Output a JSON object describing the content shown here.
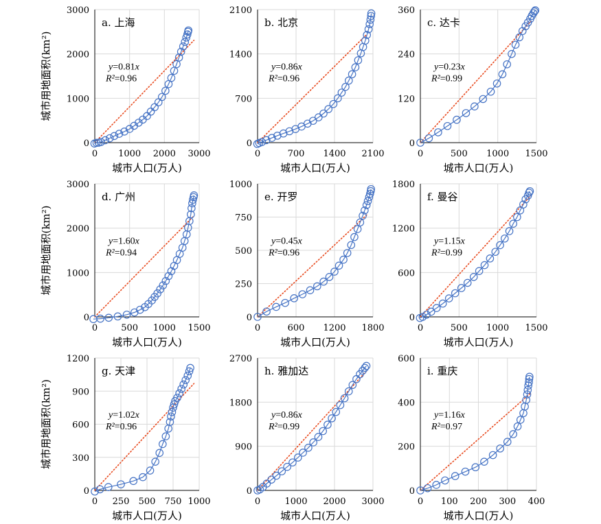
{
  "chart_data": [
    {
      "type": "scatter",
      "title": "a. 上海",
      "xlabel": "城市人口(万人)",
      "ylabel": "城市用地面积(km²)",
      "xlim": [
        0,
        3000
      ],
      "ylim": [
        0,
        3000
      ],
      "xticks": [
        0,
        1000,
        2000,
        3000
      ],
      "yticks": [
        0,
        1000,
        2000,
        3000
      ],
      "xtick_labels": [
        "0",
        "1000",
        "2000",
        "3000"
      ],
      "ytick_labels": [
        "0",
        "1000",
        "2000",
        "3000"
      ],
      "fit": {
        "slope": 0.81,
        "equation_y": "y",
        "equation_rest": "=0.81",
        "equation_x": "x",
        "r2_label": "R²",
        "r2_value": "=0.96"
      },
      "points": [
        [
          -10,
          -20
        ],
        [
          50,
          -5
        ],
        [
          110,
          0
        ],
        [
          180,
          15
        ],
        [
          300,
          55
        ],
        [
          430,
          100
        ],
        [
          560,
          150
        ],
        [
          700,
          200
        ],
        [
          850,
          250
        ],
        [
          1000,
          310
        ],
        [
          1130,
          380
        ],
        [
          1260,
          450
        ],
        [
          1380,
          520
        ],
        [
          1500,
          600
        ],
        [
          1610,
          700
        ],
        [
          1720,
          800
        ],
        [
          1830,
          910
        ],
        [
          1930,
          1030
        ],
        [
          2030,
          1170
        ],
        [
          2120,
          1320
        ],
        [
          2200,
          1460
        ],
        [
          2280,
          1620
        ],
        [
          2350,
          1770
        ],
        [
          2420,
          1920
        ],
        [
          2480,
          2050
        ],
        [
          2540,
          2170
        ],
        [
          2590,
          2270
        ],
        [
          2630,
          2370
        ],
        [
          2660,
          2440
        ],
        [
          2680,
          2500
        ],
        [
          2690,
          2530
        ]
      ]
    },
    {
      "type": "scatter",
      "title": "b. 北京",
      "xlabel": "城市人口(万人)",
      "ylabel": "",
      "xlim": [
        0,
        2100
      ],
      "ylim": [
        0,
        2100
      ],
      "xticks": [
        0,
        700,
        1400,
        2100
      ],
      "yticks": [
        0,
        700,
        1400,
        2100
      ],
      "xtick_labels": [
        "0",
        "700",
        "1400",
        "2100"
      ],
      "ytick_labels": [
        "0",
        "700",
        "1400",
        "2100"
      ],
      "fit": {
        "slope": 0.86,
        "equation_y": "y",
        "equation_rest": "=0.86",
        "equation_x": "x",
        "r2_label": "R²",
        "r2_value": "=0.96"
      },
      "points": [
        [
          -5,
          -20
        ],
        [
          30,
          -5
        ],
        [
          80,
          10
        ],
        [
          160,
          40
        ],
        [
          260,
          75
        ],
        [
          360,
          110
        ],
        [
          470,
          145
        ],
        [
          580,
          180
        ],
        [
          690,
          215
        ],
        [
          800,
          255
        ],
        [
          910,
          300
        ],
        [
          1010,
          345
        ],
        [
          1110,
          400
        ],
        [
          1200,
          460
        ],
        [
          1290,
          530
        ],
        [
          1380,
          610
        ],
        [
          1460,
          700
        ],
        [
          1530,
          790
        ],
        [
          1600,
          880
        ],
        [
          1660,
          980
        ],
        [
          1720,
          1080
        ],
        [
          1780,
          1190
        ],
        [
          1830,
          1300
        ],
        [
          1880,
          1410
        ],
        [
          1920,
          1510
        ],
        [
          1960,
          1610
        ],
        [
          1990,
          1700
        ],
        [
          2020,
          1790
        ],
        [
          2040,
          1870
        ],
        [
          2055,
          1940
        ],
        [
          2065,
          2000
        ],
        [
          2070,
          2040
        ]
      ]
    },
    {
      "type": "scatter",
      "title": "c. 达卡",
      "xlabel": "城市人口(万人)",
      "ylabel": "",
      "xlim": [
        0,
        1500
      ],
      "ylim": [
        0,
        360
      ],
      "xticks": [
        0,
        500,
        1000,
        1500
      ],
      "yticks": [
        0,
        120,
        240,
        360
      ],
      "xtick_labels": [
        "0",
        "500",
        "1000",
        "1500"
      ],
      "ytick_labels": [
        "0",
        "120",
        "240",
        "360"
      ],
      "fit": {
        "slope": 0.23,
        "equation_y": "y",
        "equation_rest": "=0.23",
        "equation_x": "x",
        "r2_label": "R²",
        "r2_value": "=0.99"
      },
      "points": [
        [
          0,
          0
        ],
        [
          110,
          12
        ],
        [
          230,
          28
        ],
        [
          350,
          45
        ],
        [
          470,
          62
        ],
        [
          590,
          80
        ],
        [
          700,
          98
        ],
        [
          810,
          118
        ],
        [
          910,
          138
        ],
        [
          990,
          160
        ],
        [
          1060,
          185
        ],
        [
          1120,
          212
        ],
        [
          1180,
          240
        ],
        [
          1230,
          265
        ],
        [
          1280,
          285
        ],
        [
          1320,
          302
        ],
        [
          1360,
          315
        ],
        [
          1390,
          325
        ],
        [
          1420,
          335
        ],
        [
          1440,
          343
        ],
        [
          1460,
          350
        ],
        [
          1475,
          355
        ],
        [
          1485,
          358
        ]
      ]
    },
    {
      "type": "scatter",
      "title": "d. 广州",
      "xlabel": "城市人口(万人)",
      "ylabel": "城市用地面积(km²)",
      "xlim": [
        0,
        1500
      ],
      "ylim": [
        0,
        3000
      ],
      "xticks": [
        0,
        500,
        1000,
        1500
      ],
      "yticks": [
        0,
        1000,
        2000,
        3000
      ],
      "xtick_labels": [
        "0",
        "500",
        "1000",
        "1500"
      ],
      "ytick_labels": [
        "0",
        "1000",
        "2000",
        "3000"
      ],
      "fit": {
        "slope": 1.6,
        "equation_y": "y",
        "equation_rest": "=1.60",
        "equation_x": "x",
        "r2_label": "R²",
        "r2_value": "=0.94"
      },
      "points": [
        [
          -20,
          -50
        ],
        [
          80,
          -40
        ],
        [
          200,
          -20
        ],
        [
          330,
          10
        ],
        [
          460,
          50
        ],
        [
          570,
          100
        ],
        [
          650,
          160
        ],
        [
          720,
          220
        ],
        [
          770,
          290
        ],
        [
          820,
          370
        ],
        [
          860,
          450
        ],
        [
          900,
          530
        ],
        [
          940,
          620
        ],
        [
          980,
          710
        ],
        [
          1020,
          810
        ],
        [
          1060,
          920
        ],
        [
          1100,
          1030
        ],
        [
          1140,
          1150
        ],
        [
          1180,
          1280
        ],
        [
          1220,
          1420
        ],
        [
          1260,
          1560
        ],
        [
          1290,
          1710
        ],
        [
          1320,
          1860
        ],
        [
          1340,
          2010
        ],
        [
          1360,
          2160
        ],
        [
          1380,
          2310
        ],
        [
          1390,
          2450
        ],
        [
          1400,
          2560
        ],
        [
          1410,
          2640
        ],
        [
          1420,
          2700
        ],
        [
          1425,
          2740
        ]
      ]
    },
    {
      "type": "scatter",
      "title": "e. 开罗",
      "xlabel": "城市人口(万人)",
      "ylabel": "",
      "xlim": [
        0,
        1800
      ],
      "ylim": [
        0,
        1000
      ],
      "xticks": [
        0,
        600,
        1200,
        1800
      ],
      "yticks": [
        0,
        250,
        500,
        750,
        1000
      ],
      "xtick_labels": [
        "0",
        "600",
        "1200",
        "1800"
      ],
      "ytick_labels": [
        "0",
        "250",
        "500",
        "750",
        "1000"
      ],
      "fit": {
        "slope": 0.45,
        "equation_y": "y",
        "equation_rest": "=0.45",
        "equation_x": "x",
        "r2_label": "R²",
        "r2_value": "=0.96"
      },
      "points": [
        [
          0,
          0
        ],
        [
          140,
          40
        ],
        [
          290,
          75
        ],
        [
          430,
          105
        ],
        [
          570,
          140
        ],
        [
          700,
          170
        ],
        [
          820,
          200
        ],
        [
          930,
          230
        ],
        [
          1030,
          265
        ],
        [
          1120,
          300
        ],
        [
          1200,
          340
        ],
        [
          1270,
          385
        ],
        [
          1340,
          430
        ],
        [
          1400,
          480
        ],
        [
          1460,
          540
        ],
        [
          1510,
          600
        ],
        [
          1560,
          660
        ],
        [
          1600,
          710
        ],
        [
          1640,
          760
        ],
        [
          1670,
          800
        ],
        [
          1700,
          840
        ],
        [
          1720,
          870
        ],
        [
          1740,
          900
        ],
        [
          1755,
          925
        ],
        [
          1765,
          945
        ],
        [
          1770,
          960
        ]
      ]
    },
    {
      "type": "scatter",
      "title": "f. 曼谷",
      "xlabel": "城市人口(万人)",
      "ylabel": "",
      "xlim": [
        0,
        1500
      ],
      "ylim": [
        0,
        1800
      ],
      "xticks": [
        0,
        500,
        1000,
        1500
      ],
      "yticks": [
        0,
        600,
        1200,
        1800
      ],
      "xtick_labels": [
        "0",
        "500",
        "1000",
        "1500"
      ],
      "ytick_labels": [
        "0",
        "600",
        "1200",
        "1800"
      ],
      "fit": {
        "slope": 1.15,
        "equation_y": "y",
        "equation_rest": "=1.15",
        "equation_x": "x",
        "r2_label": "R²",
        "r2_value": "=0.99"
      },
      "points": [
        [
          -5,
          -15
        ],
        [
          30,
          0
        ],
        [
          80,
          30
        ],
        [
          140,
          70
        ],
        [
          210,
          120
        ],
        [
          290,
          180
        ],
        [
          370,
          250
        ],
        [
          450,
          320
        ],
        [
          530,
          390
        ],
        [
          610,
          460
        ],
        [
          690,
          540
        ],
        [
          760,
          620
        ],
        [
          830,
          700
        ],
        [
          900,
          790
        ],
        [
          970,
          880
        ],
        [
          1030,
          970
        ],
        [
          1090,
          1060
        ],
        [
          1150,
          1160
        ],
        [
          1200,
          1260
        ],
        [
          1250,
          1350
        ],
        [
          1290,
          1440
        ],
        [
          1330,
          1520
        ],
        [
          1360,
          1590
        ],
        [
          1390,
          1640
        ],
        [
          1405,
          1680
        ],
        [
          1415,
          1700
        ]
      ]
    },
    {
      "type": "scatter",
      "title": "g. 天津",
      "xlabel": "城市人口(万人)",
      "ylabel": "城市用地面积(km²)",
      "xlim": [
        0,
        1000
      ],
      "ylim": [
        0,
        1200
      ],
      "xticks": [
        0,
        250,
        500,
        750,
        1000
      ],
      "yticks": [
        0,
        300,
        600,
        900,
        1200
      ],
      "xtick_labels": [
        "0",
        "250",
        "500",
        "750",
        "1000"
      ],
      "ytick_labels": [
        "0",
        "300",
        "600",
        "900",
        "1200"
      ],
      "fit": {
        "slope": 1.02,
        "equation_y": "y",
        "equation_rest": "=1.02",
        "equation_x": "x",
        "r2_label": "R²",
        "r2_value": "=0.96"
      },
      "points": [
        [
          0,
          -10
        ],
        [
          50,
          10
        ],
        [
          130,
          30
        ],
        [
          250,
          55
        ],
        [
          370,
          85
        ],
        [
          460,
          120
        ],
        [
          530,
          180
        ],
        [
          580,
          260
        ],
        [
          620,
          340
        ],
        [
          650,
          420
        ],
        [
          680,
          490
        ],
        [
          705,
          560
        ],
        [
          720,
          620
        ],
        [
          730,
          670
        ],
        [
          740,
          710
        ],
        [
          750,
          750
        ],
        [
          760,
          780
        ],
        [
          770,
          810
        ],
        [
          790,
          840
        ],
        [
          810,
          880
        ],
        [
          830,
          920
        ],
        [
          850,
          960
        ],
        [
          870,
          1000
        ],
        [
          890,
          1040
        ],
        [
          905,
          1080
        ],
        [
          915,
          1110
        ]
      ]
    },
    {
      "type": "scatter",
      "title": "h. 雅加达",
      "xlabel": "城市人口(万人)",
      "ylabel": "",
      "xlim": [
        0,
        3000
      ],
      "ylim": [
        0,
        2700
      ],
      "xticks": [
        0,
        1000,
        2000,
        3000
      ],
      "yticks": [
        0,
        900,
        1800,
        2700
      ],
      "xtick_labels": [
        "0",
        "1000",
        "2000",
        "3000"
      ],
      "ytick_labels": [
        "0",
        "900",
        "1800",
        "2700"
      ],
      "fit": {
        "slope": 0.86,
        "equation_y": "y",
        "equation_rest": "=0.86",
        "equation_x": "x",
        "r2_label": "R²",
        "r2_value": "=0.99"
      },
      "points": [
        [
          0,
          0
        ],
        [
          60,
          20
        ],
        [
          140,
          70
        ],
        [
          240,
          140
        ],
        [
          360,
          220
        ],
        [
          490,
          300
        ],
        [
          630,
          390
        ],
        [
          770,
          480
        ],
        [
          910,
          570
        ],
        [
          1050,
          670
        ],
        [
          1180,
          770
        ],
        [
          1320,
          870
        ],
        [
          1450,
          980
        ],
        [
          1580,
          1090
        ],
        [
          1700,
          1210
        ],
        [
          1820,
          1340
        ],
        [
          1930,
          1470
        ],
        [
          2040,
          1600
        ],
        [
          2150,
          1740
        ],
        [
          2260,
          1880
        ],
        [
          2370,
          2020
        ],
        [
          2470,
          2150
        ],
        [
          2570,
          2270
        ],
        [
          2660,
          2370
        ],
        [
          2730,
          2440
        ],
        [
          2790,
          2500
        ],
        [
          2830,
          2540
        ]
      ]
    },
    {
      "type": "scatter",
      "title": "i. 重庆",
      "xlabel": "城市人口(万人)",
      "ylabel": "",
      "xlim": [
        0,
        400
      ],
      "ylim": [
        0,
        600
      ],
      "xticks": [
        0,
        100,
        200,
        300,
        400
      ],
      "yticks": [
        0,
        200,
        400,
        600
      ],
      "xtick_labels": [
        "0",
        "100",
        "200",
        "300",
        "400"
      ],
      "ytick_labels": [
        "0",
        "200",
        "400",
        "600"
      ],
      "fit": {
        "slope": 1.16,
        "equation_y": "y",
        "equation_rest": "=1.16",
        "equation_x": "x",
        "r2_label": "R²",
        "r2_value": "=0.97"
      },
      "points": [
        [
          0,
          0
        ],
        [
          25,
          10
        ],
        [
          55,
          25
        ],
        [
          85,
          45
        ],
        [
          120,
          65
        ],
        [
          155,
          85
        ],
        [
          190,
          105
        ],
        [
          220,
          130
        ],
        [
          250,
          160
        ],
        [
          275,
          190
        ],
        [
          300,
          220
        ],
        [
          320,
          255
        ],
        [
          335,
          290
        ],
        [
          345,
          320
        ],
        [
          355,
          350
        ],
        [
          360,
          380
        ],
        [
          365,
          410
        ],
        [
          368,
          435
        ],
        [
          370,
          455
        ],
        [
          372,
          475
        ],
        [
          374,
          490
        ],
        [
          375,
          505
        ],
        [
          376,
          515
        ]
      ]
    }
  ]
}
